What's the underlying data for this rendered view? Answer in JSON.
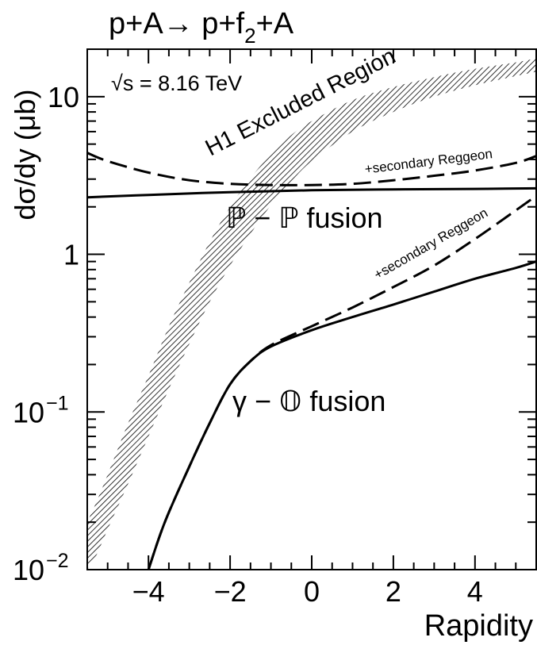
{
  "chart_data": {
    "type": "line",
    "title": "p+A→ p+f",
    "title_sub": "2",
    "title_tail": "+A",
    "xlabel": "Rapidity",
    "ylabel": "dσ/dy (μb)",
    "energy_label": "√s = 8.16 TeV",
    "xlim": [
      -5.5,
      5.5
    ],
    "ylim": [
      0.01,
      20
    ],
    "y_scale": "log",
    "grid": false,
    "x_ticks": [
      -4,
      -2,
      0,
      2,
      4
    ],
    "x_tick_labels": [
      "−4",
      "−2",
      "0",
      "2",
      "4"
    ],
    "y_ticks": [
      0.01,
      0.1,
      1,
      10
    ],
    "y_tick_labels": [
      {
        "base": "10",
        "exp": "−2"
      },
      {
        "base": "10",
        "exp": "−1"
      },
      {
        "base": "1",
        "exp": ""
      },
      {
        "base": "10",
        "exp": ""
      }
    ],
    "annotations": {
      "band": "H1 Excluded Region",
      "pp_secondary": "+secondary Reggeon",
      "pp_fusion": "ℙ − ℙ fusion",
      "go_secondary": "+secondary Reggeon",
      "go_fusion": "γ − 𝕆 fusion"
    },
    "series": [
      {
        "style": "solid",
        "x": [
          -5.5,
          -4,
          -2,
          0,
          2,
          4,
          5.5
        ],
        "values": [
          2.3,
          2.38,
          2.48,
          2.55,
          2.58,
          2.6,
          2.62
        ]
      },
      {
        "style": "dashed",
        "x": [
          -5.5,
          -5,
          -4,
          -3,
          -2,
          -1,
          0,
          1,
          2,
          3,
          4,
          5,
          5.5
        ],
        "values": [
          4.4,
          3.9,
          3.3,
          2.95,
          2.8,
          2.75,
          2.75,
          2.8,
          2.95,
          3.15,
          3.4,
          3.8,
          4.2
        ]
      },
      {
        "style": "solid",
        "x": [
          -4,
          -3.6,
          -3,
          -2.5,
          -2,
          -1.5,
          -1,
          0,
          1,
          2,
          3,
          4,
          5,
          5.5
        ],
        "values": [
          0.01,
          0.02,
          0.045,
          0.085,
          0.15,
          0.21,
          0.26,
          0.33,
          0.4,
          0.48,
          0.58,
          0.7,
          0.82,
          0.9
        ]
      },
      {
        "style": "dashed",
        "x": [
          -4,
          -3.6,
          -3,
          -2.5,
          -2,
          -1.5,
          -1,
          0,
          1,
          2,
          3,
          4,
          5,
          5.5
        ],
        "values": [
          0.01,
          0.02,
          0.045,
          0.085,
          0.15,
          0.21,
          0.265,
          0.35,
          0.46,
          0.62,
          0.85,
          1.25,
          1.9,
          2.35
        ]
      }
    ],
    "band": {
      "x": [
        -5.5,
        -5.3,
        -5,
        -4.5,
        -4,
        -3.5,
        -3,
        -2.5,
        -2,
        -1.5,
        -1,
        -0.5,
        0,
        1,
        2,
        3,
        4,
        5,
        5.5
      ],
      "lower": [
        0.01,
        0.012,
        0.018,
        0.035,
        0.07,
        0.14,
        0.27,
        0.5,
        0.85,
        1.35,
        2.05,
        2.9,
        3.9,
        6.0,
        8.0,
        10.0,
        11.8,
        13.5,
        14.4
      ],
      "upper": [
        0.02,
        0.026,
        0.04,
        0.085,
        0.17,
        0.35,
        0.66,
        1.2,
        2.0,
        3.05,
        4.3,
        5.7,
        7.0,
        9.5,
        11.5,
        13.3,
        15.0,
        16.5,
        17.5
      ]
    }
  }
}
